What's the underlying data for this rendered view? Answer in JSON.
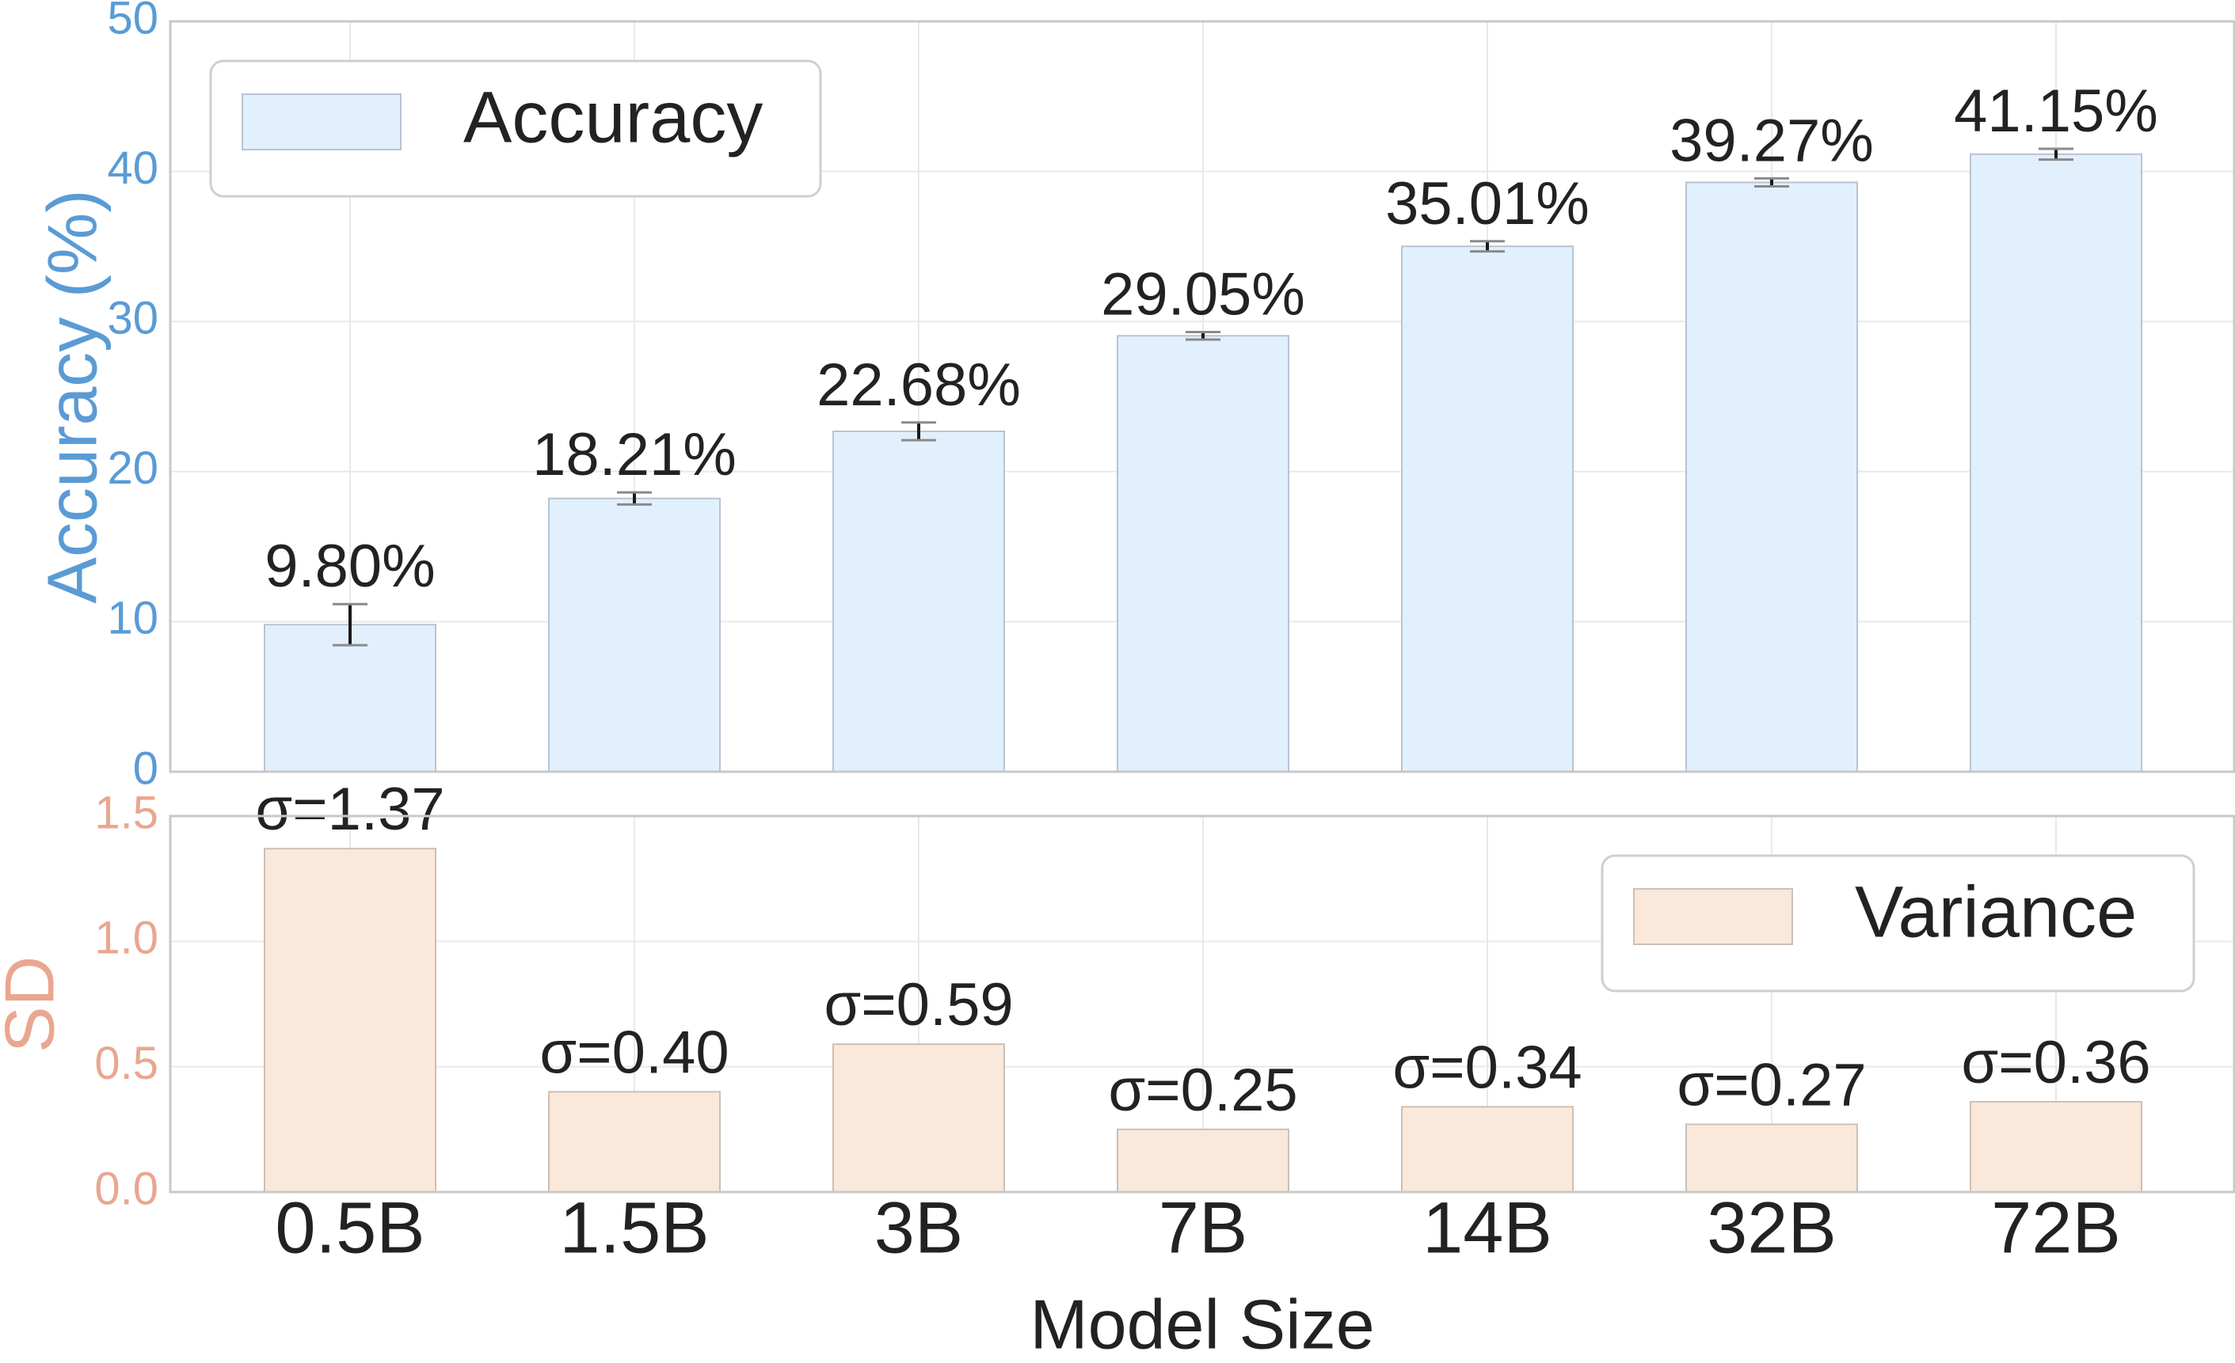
{
  "colors": {
    "accuracy_fill": "#e2f0fd",
    "variance_fill": "#fae8da",
    "accuracy_axis": "#5a9bd5",
    "variance_axis": "#e9a78f",
    "text": "#222222"
  },
  "chart_data": [
    {
      "type": "bar",
      "panel": "top",
      "categories": [
        "0.5B",
        "1.5B",
        "3B",
        "7B",
        "14B",
        "32B",
        "72B"
      ],
      "series": [
        {
          "name": "Accuracy",
          "values": [
            9.8,
            18.21,
            22.68,
            29.05,
            35.01,
            39.27,
            41.15
          ],
          "error": [
            1.37,
            0.4,
            0.59,
            0.25,
            0.34,
            0.27,
            0.36
          ]
        }
      ],
      "data_labels": [
        "9.80%",
        "18.21%",
        "22.68%",
        "29.05%",
        "35.01%",
        "39.27%",
        "41.15%"
      ],
      "ylabel": "Accuracy (%)",
      "ylim": [
        0,
        50
      ],
      "yticks": [
        0,
        10,
        20,
        30,
        40,
        50
      ],
      "legend": "top-left",
      "grid": true
    },
    {
      "type": "bar",
      "panel": "bottom",
      "categories": [
        "0.5B",
        "1.5B",
        "3B",
        "7B",
        "14B",
        "32B",
        "72B"
      ],
      "series": [
        {
          "name": "Variance",
          "values": [
            1.37,
            0.4,
            0.59,
            0.25,
            0.34,
            0.27,
            0.36
          ]
        }
      ],
      "data_labels": [
        "σ=1.37",
        "σ=0.40",
        "σ=0.59",
        "σ=0.25",
        "σ=0.34",
        "σ=0.27",
        "σ=0.36"
      ],
      "ylabel": "SD",
      "xlabel": "Model Size",
      "ylim": [
        0,
        1.5
      ],
      "yticks": [
        "0.0",
        "0.5",
        "1.0",
        "1.5"
      ],
      "legend": "top-right",
      "grid": true
    }
  ]
}
